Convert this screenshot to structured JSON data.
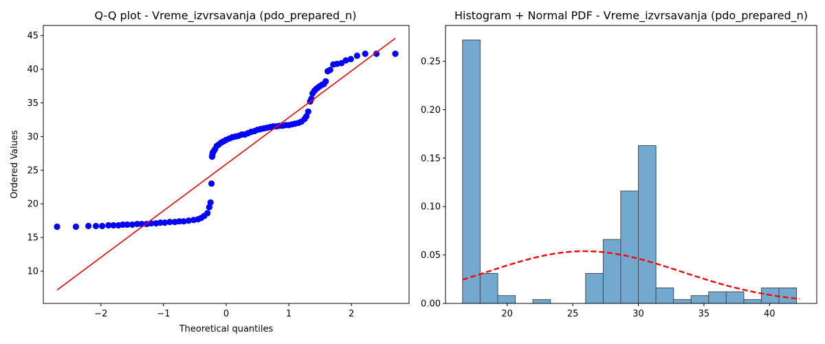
{
  "chart_data": [
    {
      "type": "scatter",
      "title": "Q-Q plot - Vreme_izvrsavanja (pdo_prepared_n)",
      "xlabel": "Theoretical quantiles",
      "ylabel": "Ordered Values",
      "xlim": [
        -2.92,
        2.92
      ],
      "ylim": [
        5.2,
        46.5
      ],
      "xticks": [
        -2,
        -1,
        0,
        1,
        2
      ],
      "yticks": [
        10,
        15,
        20,
        25,
        30,
        35,
        40,
        45
      ],
      "grid": false,
      "colors": {
        "points": "#0000ff",
        "line": "#ff0000"
      },
      "series": [
        {
          "x": [
            -2.7,
            -2.4,
            -2.2,
            -2.08,
            -1.98,
            -1.88,
            -1.8,
            -1.72,
            -1.65,
            -1.58,
            -1.5,
            -1.42,
            -1.35,
            -1.27,
            -1.2,
            -1.12,
            -1.05,
            -0.98,
            -0.9,
            -0.82,
            -0.75,
            -0.68,
            -0.6,
            -0.52,
            -0.45,
            -0.4,
            -0.35,
            -0.3,
            -0.27,
            -0.25,
            -0.235,
            -0.225,
            -0.22,
            -0.215,
            -0.2,
            -0.18,
            -0.15,
            -0.12,
            -0.08,
            -0.04,
            0.0,
            0.05,
            0.1,
            0.15,
            0.2,
            0.25,
            0.3,
            0.35,
            0.4,
            0.45,
            0.5,
            0.55,
            0.6,
            0.65,
            0.7,
            0.75,
            0.8,
            0.85,
            0.9,
            0.95,
            1.0,
            1.05,
            1.1,
            1.15,
            1.2,
            1.25,
            1.28,
            1.31,
            1.34,
            1.36,
            1.38,
            1.41,
            1.44,
            1.47,
            1.5,
            1.53,
            1.56,
            1.59,
            1.62,
            1.66,
            1.71,
            1.77,
            1.84,
            1.91,
            1.99,
            2.09,
            2.22,
            2.4,
            2.7
          ],
          "y": [
            16.6,
            16.6,
            16.7,
            16.7,
            16.7,
            16.8,
            16.8,
            16.8,
            16.9,
            16.9,
            16.9,
            17.0,
            17.0,
            17.0,
            17.1,
            17.1,
            17.2,
            17.2,
            17.3,
            17.3,
            17.4,
            17.4,
            17.5,
            17.6,
            17.7,
            17.9,
            18.2,
            18.6,
            19.5,
            20.2,
            23.0,
            27.0,
            27.3,
            27.6,
            27.8,
            28.1,
            28.6,
            28.8,
            29.1,
            29.3,
            29.5,
            29.7,
            29.9,
            30.0,
            30.1,
            30.3,
            30.3,
            30.5,
            30.7,
            30.8,
            31.0,
            31.1,
            31.2,
            31.3,
            31.4,
            31.5,
            31.5,
            31.6,
            31.6,
            31.7,
            31.7,
            31.8,
            31.9,
            32.0,
            32.2,
            32.6,
            33.0,
            33.7,
            35.2,
            35.6,
            36.4,
            36.8,
            37.1,
            37.3,
            37.5,
            37.7,
            37.8,
            38.2,
            39.7,
            39.9,
            40.7,
            40.8,
            40.9,
            41.3,
            41.5,
            42.0,
            42.3,
            42.3,
            42.3
          ]
        }
      ],
      "fit_line": {
        "x": [
          -2.7,
          2.7
        ],
        "y": [
          7.2,
          44.6
        ]
      }
    },
    {
      "type": "bar",
      "title": "Histogram + Normal PDF - Vreme_izvrsavanja (pdo_prepared_n)",
      "xlabel": "",
      "ylabel": "",
      "xlim": [
        15.3,
        43.6
      ],
      "ylim": [
        0,
        0.287
      ],
      "xticks": [
        20,
        25,
        30,
        35,
        40
      ],
      "yticks": [
        0.0,
        0.05,
        0.1,
        0.15,
        0.2,
        0.25
      ],
      "ytick_labels": [
        "0.00",
        "0.05",
        "0.10",
        "0.15",
        "0.20",
        "0.25"
      ],
      "grid": false,
      "colors": {
        "bars": "#74a9cf",
        "bar_edge": "#3f4a55",
        "pdf": "#ff0000"
      },
      "bins": {
        "edges": [
          16.6,
          17.94,
          19.28,
          20.62,
          21.96,
          23.3,
          24.64,
          25.98,
          27.32,
          28.66,
          30.0,
          31.34,
          32.68,
          34.02,
          35.36,
          36.7,
          38.04,
          39.38,
          40.72,
          42.06
        ],
        "values": [
          0.272,
          0.031,
          0.008,
          0.0,
          0.004,
          0.0,
          0.0,
          0.031,
          0.066,
          0.116,
          0.163,
          0.016,
          0.004,
          0.008,
          0.012,
          0.012,
          0.004,
          0.016,
          0.016
        ]
      },
      "pdf": {
        "mean": 25.9,
        "std": 7.4,
        "x_range": [
          16.6,
          42.3
        ],
        "style": "dashed"
      }
    }
  ]
}
